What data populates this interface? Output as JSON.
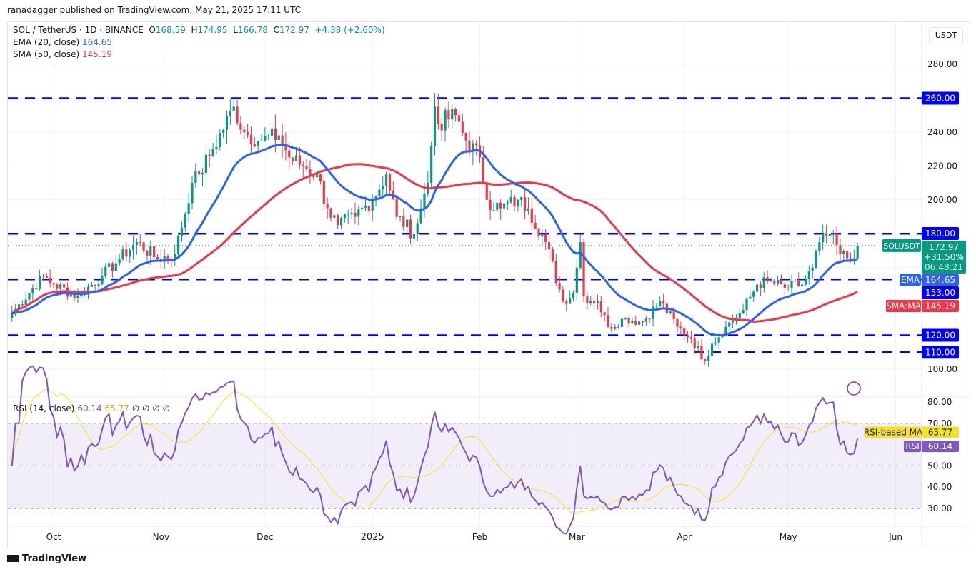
{
  "publisher": "ranadagger published on TradingView.com, May 21, 2025 17:11 UTC",
  "legend": {
    "symbol": "SOL / TetherUS · 1D · BINANCE",
    "o": "168.59",
    "h": "174.95",
    "l": "166.78",
    "c": "172.97",
    "change": "+4.38 (+2.60%)",
    "ema_label": "EMA (20, close)",
    "ema_value": "164.65",
    "sma_label": "SMA (50, close)",
    "sma_value": "145.19",
    "rsi_label": "RSI (14, close)",
    "rsi_value": "60.14",
    "rsi_ma_value": "65.77",
    "rsi_extra": "∅ ∅ ∅ ∅"
  },
  "currency": "USDT",
  "footer": "TradingView",
  "colors": {
    "up": "#089981",
    "down": "#f23645",
    "ema": "#2962ff",
    "sma": "#f23645",
    "level": "#0000ff",
    "rsi": "#7e57c2",
    "rsi_ma": "#f5e225"
  },
  "chart_data": {
    "type": "candlestick",
    "title": "SOL / TetherUS · 1D · BINANCE",
    "start_date": "2024-09-19",
    "anchors": [
      [
        0,
        133
      ],
      [
        9,
        155
      ],
      [
        12,
        150
      ],
      [
        19,
        143
      ],
      [
        26,
        155
      ],
      [
        31,
        165
      ],
      [
        36,
        175
      ],
      [
        42,
        165
      ],
      [
        47,
        168
      ],
      [
        52,
        210
      ],
      [
        54,
        215
      ],
      [
        58,
        230
      ],
      [
        64,
        255
      ],
      [
        67,
        240
      ],
      [
        72,
        235
      ],
      [
        77,
        238
      ],
      [
        80,
        225
      ],
      [
        84,
        220
      ],
      [
        88,
        215
      ],
      [
        91,
        195
      ],
      [
        94,
        185
      ],
      [
        99,
        190
      ],
      [
        104,
        200
      ],
      [
        108,
        215
      ],
      [
        111,
        190
      ],
      [
        116,
        180
      ],
      [
        118,
        195
      ],
      [
        120,
        210
      ],
      [
        122,
        255
      ],
      [
        123,
        245
      ],
      [
        128,
        250
      ],
      [
        131,
        235
      ],
      [
        135,
        225
      ],
      [
        137,
        200
      ],
      [
        141,
        195
      ],
      [
        146,
        200
      ],
      [
        149,
        195
      ],
      [
        154,
        175
      ],
      [
        159,
        140
      ],
      [
        162,
        145
      ],
      [
        164,
        175
      ],
      [
        165,
        143
      ],
      [
        169,
        140
      ],
      [
        172,
        125
      ],
      [
        177,
        130
      ],
      [
        182,
        128
      ],
      [
        187,
        140
      ],
      [
        192,
        125
      ],
      [
        196,
        118
      ],
      [
        200,
        105
      ],
      [
        202,
        115
      ],
      [
        206,
        125
      ],
      [
        211,
        135
      ],
      [
        215,
        150
      ],
      [
        218,
        152
      ],
      [
        223,
        148
      ],
      [
        228,
        150
      ],
      [
        231,
        160
      ],
      [
        233,
        175
      ],
      [
        236,
        180
      ],
      [
        239,
        168
      ],
      [
        242,
        165
      ],
      [
        244,
        172.97
      ]
    ],
    "price_axis": {
      "ticks": [
        "280.00",
        "260.00",
        "240.00",
        "220.00",
        "200.00",
        "180.00",
        "153.00",
        "120.00",
        "110.00",
        "100.00"
      ],
      "range": [
        92,
        296
      ]
    },
    "levels": [
      {
        "value": 260,
        "label": "260.00"
      },
      {
        "value": 180,
        "label": "180.00"
      },
      {
        "value": 153,
        "label": "153.00"
      },
      {
        "value": 120,
        "label": "120.00"
      },
      {
        "value": 110,
        "label": "110.00"
      }
    ],
    "last": {
      "label": "SOLUSDT",
      "price": "172.97",
      "pct": "+31.50%",
      "countdown": "06:48:21"
    },
    "ema_tag": {
      "label": "EMA",
      "value": "164.65",
      "level": 164.65
    },
    "sma_tag": {
      "label": "SMA:MA",
      "value": "145.19",
      "level": 145.19
    },
    "rsi_axis": {
      "ticks": [
        "80.00",
        "70.00",
        "50.00",
        "40.00",
        "30.00"
      ],
      "range": [
        24,
        82
      ]
    },
    "rsi_tags": [
      {
        "label": "RSI-based MA",
        "value": "65.77",
        "level": 65.77
      },
      {
        "label": "RSI",
        "value": "60.14",
        "level": 60.14
      }
    ],
    "x_ticks": [
      {
        "label": "Oct",
        "day": 12
      },
      {
        "label": "Nov",
        "day": 43
      },
      {
        "label": "Dec",
        "day": 73
      },
      {
        "label": "2025",
        "day": 104
      },
      {
        "label": "Feb",
        "day": 135
      },
      {
        "label": "Mar",
        "day": 163
      },
      {
        "label": "Apr",
        "day": 194
      },
      {
        "label": "May",
        "day": 224
      },
      {
        "label": "Jun",
        "day": 255
      }
    ]
  }
}
